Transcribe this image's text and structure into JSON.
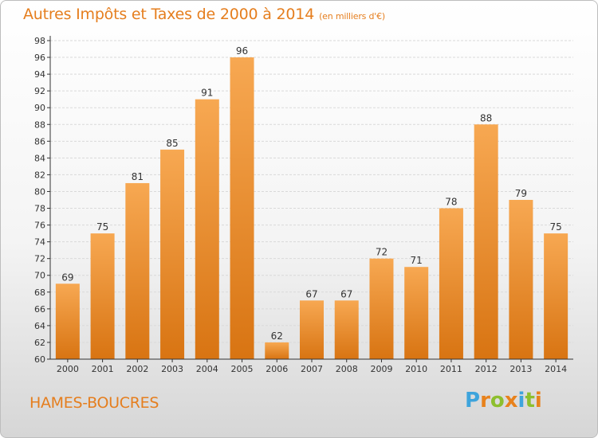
{
  "header": {
    "title": "Autres Impôts et Taxes de 2000 à 2014",
    "unit": "(en milliers d'€)"
  },
  "commune": "HAMES-BOUCRES",
  "logo": {
    "letters": [
      "P",
      "r",
      "o",
      "x",
      "i",
      "t",
      "i"
    ],
    "colors": [
      "#3ea4dc",
      "#e8821c",
      "#8dbf2e",
      "#e8821c",
      "#3ea4dc",
      "#8dbf2e",
      "#e8821c"
    ]
  },
  "colors": {
    "bar_top": "#f7a852",
    "bar_bottom": "#d87412",
    "grid": "#d9d9d9",
    "axis": "#333333",
    "title": "#e57e1e"
  },
  "chart_data": {
    "type": "bar",
    "categories": [
      "2000",
      "2001",
      "2002",
      "2003",
      "2004",
      "2005",
      "2006",
      "2007",
      "2008",
      "2009",
      "2010",
      "2011",
      "2012",
      "2013",
      "2014"
    ],
    "values": [
      69,
      75,
      81,
      85,
      91,
      96,
      62,
      67,
      67,
      72,
      71,
      78,
      88,
      79,
      75
    ],
    "title": "Autres Impôts et Taxes de 2000 à 2014",
    "subtitle": "(en milliers d'€)",
    "xlabel": "",
    "ylabel": "",
    "ylim": [
      60,
      98
    ],
    "ytick_step": 2,
    "grid": true,
    "data_labels": true
  }
}
